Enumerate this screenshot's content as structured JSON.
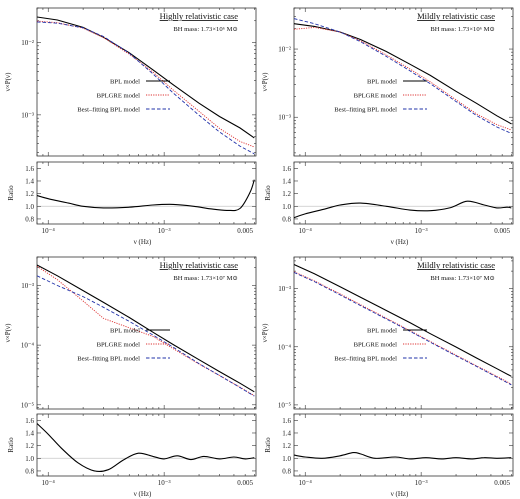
{
  "chart_data": [
    {
      "type": "line",
      "title": "Highly relativistic case",
      "subtitle": "BH mass: 1.73×10⁶ M⊙",
      "xlabel": "ν (Hz)",
      "ylabel": "ν×P(ν)",
      "xscale": "log",
      "yscale": "log",
      "xlim": [
        8e-05,
        0.0062
      ],
      "ylim": [
        0.00027,
        0.03
      ],
      "xticks": [
        {
          "v": 0.0001,
          "label": "10⁻⁴"
        },
        {
          "v": 0.001,
          "label": "10⁻³"
        },
        {
          "v": 0.005,
          "label": "0.005"
        }
      ],
      "yticks": [
        {
          "v": 0.001,
          "label": "10⁻³"
        },
        {
          "v": 0.01,
          "label": "10⁻²"
        }
      ],
      "x": [
        8e-05,
        0.00012,
        0.0002,
        0.0003,
        0.0005,
        0.0008,
        0.0012,
        0.002,
        0.003,
        0.0045,
        0.006
      ],
      "series": [
        {
          "name": "BPL model",
          "color": "#000000",
          "dash": "solid",
          "values": [
            0.0225,
            0.0205,
            0.0162,
            0.0118,
            0.0072,
            0.0042,
            0.0026,
            0.00145,
            0.00095,
            0.00066,
            0.00048
          ]
        },
        {
          "name": "BPLGRE model",
          "color": "#dd3333",
          "dash": "dotted",
          "values": [
            0.0198,
            0.0188,
            0.0158,
            0.0117,
            0.0069,
            0.0039,
            0.0022,
            0.00112,
            0.00065,
            0.00043,
            0.00036
          ]
        },
        {
          "name": "Best–fitting BPL model",
          "color": "#2233aa",
          "dash": "dashed",
          "values": [
            0.0193,
            0.0185,
            0.016,
            0.0121,
            0.0071,
            0.0037,
            0.002,
            0.00099,
            0.00058,
            0.00037,
            0.00029
          ]
        }
      ],
      "legend_position": "bottom-left",
      "ratio": {
        "ylabel": "Ratio",
        "ylim": [
          0.72,
          1.7
        ],
        "yticks": [
          0.8,
          1.0,
          1.2,
          1.4,
          1.6
        ],
        "reference": 1.0,
        "x": [
          8e-05,
          0.0001,
          0.00015,
          0.0002,
          0.0003,
          0.0005,
          0.0008,
          0.0012,
          0.0018,
          0.0025,
          0.0035,
          0.0045,
          0.0055,
          0.006
        ],
        "values": [
          1.17,
          1.12,
          1.05,
          1.0,
          0.975,
          0.985,
          1.02,
          1.03,
          1.0,
          0.96,
          0.935,
          0.965,
          1.22,
          1.42
        ]
      }
    },
    {
      "type": "line",
      "title": "Mildly relativistic case",
      "subtitle": "BH mass: 1.73×10⁶ M⊙",
      "xlabel": "ν (Hz)",
      "ylabel": "ν×P(ν)",
      "xscale": "log",
      "yscale": "log",
      "xlim": [
        8e-05,
        0.0062
      ],
      "ylim": [
        0.00027,
        0.04
      ],
      "xticks": [
        {
          "v": 0.0001,
          "label": "10⁻⁴"
        },
        {
          "v": 0.001,
          "label": "10⁻³"
        },
        {
          "v": 0.005,
          "label": "0.005"
        }
      ],
      "yticks": [
        {
          "v": 0.001,
          "label": "10⁻³"
        },
        {
          "v": 0.01,
          "label": "10⁻²"
        }
      ],
      "x": [
        8e-05,
        0.00012,
        0.0002,
        0.0003,
        0.0005,
        0.0008,
        0.0012,
        0.002,
        0.003,
        0.0045,
        0.006
      ],
      "series": [
        {
          "name": "BPL model",
          "color": "#000000",
          "dash": "solid",
          "values": [
            0.0235,
            0.0215,
            0.0178,
            0.0138,
            0.0092,
            0.006,
            0.0041,
            0.0024,
            0.0016,
            0.00105,
            0.0008
          ]
        },
        {
          "name": "BPLGRE model",
          "color": "#dd3333",
          "dash": "dotted",
          "values": [
            0.0195,
            0.0208,
            0.0178,
            0.0132,
            0.0082,
            0.0051,
            0.0033,
            0.0018,
            0.00112,
            0.00078,
            0.00065
          ]
        },
        {
          "name": "Best–fitting BPL model",
          "color": "#2233aa",
          "dash": "dashed",
          "values": [
            0.028,
            0.0235,
            0.0178,
            0.0128,
            0.0078,
            0.0048,
            0.0031,
            0.0017,
            0.00106,
            0.00072,
            0.00058
          ]
        }
      ],
      "legend_position": "bottom-right",
      "ratio": {
        "ylabel": "Ratio",
        "ylim": [
          0.72,
          1.7
        ],
        "yticks": [
          0.8,
          1.0,
          1.2,
          1.4,
          1.6
        ],
        "reference": 1.0,
        "x": [
          8e-05,
          0.0001,
          0.00015,
          0.0002,
          0.0003,
          0.0005,
          0.0008,
          0.0012,
          0.0018,
          0.0025,
          0.0035,
          0.0045,
          0.0055,
          0.006
        ],
        "values": [
          0.82,
          0.88,
          0.96,
          1.02,
          1.05,
          1.0,
          0.94,
          0.93,
          0.98,
          1.08,
          1.02,
          0.975,
          0.985,
          0.975
        ]
      }
    },
    {
      "type": "line",
      "title": "Highly relativistic case",
      "subtitle": "BH mass: 1.73×10⁷ M⊙",
      "xlabel": "ν (Hz)",
      "ylabel": "ν×P(ν)",
      "xscale": "log",
      "yscale": "log",
      "xlim": [
        8e-05,
        0.0062
      ],
      "ylim": [
        8.5e-06,
        0.003
      ],
      "xticks": [
        {
          "v": 0.0001,
          "label": "10⁻⁴"
        },
        {
          "v": 0.001,
          "label": "10⁻³"
        },
        {
          "v": 0.005,
          "label": "0.005"
        }
      ],
      "yticks": [
        {
          "v": 1e-05,
          "label": "10⁻⁵"
        },
        {
          "v": 0.0001,
          "label": "10⁻⁴"
        },
        {
          "v": 0.001,
          "label": "10⁻³"
        }
      ],
      "x": [
        8e-05,
        0.00012,
        0.0002,
        0.0003,
        0.0005,
        0.0008,
        0.0012,
        0.002,
        0.003,
        0.0045,
        0.006
      ],
      "series": [
        {
          "name": "BPL model",
          "color": "#000000",
          "dash": "solid",
          "values": [
            0.0022,
            0.00145,
            0.00082,
            0.00052,
            0.00029,
            0.000165,
            0.000102,
            5.7e-05,
            3.6e-05,
            2.3e-05,
            1.65e-05
          ]
        },
        {
          "name": "BPLGRE model",
          "color": "#dd3333",
          "dash": "dotted",
          "values": [
            0.0021,
            0.00125,
            0.00055,
            0.00028,
            0.000195,
            0.00014,
            8.7e-05,
            4.8e-05,
            3.1e-05,
            1.98e-05,
            1.42e-05
          ]
        },
        {
          "name": "Best–fitting BPL model",
          "color": "#2233aa",
          "dash": "dashed",
          "values": [
            0.00145,
            0.001,
            0.00065,
            0.00043,
            0.00025,
            0.000148,
            9.2e-05,
            4.9e-05,
            3.1e-05,
            1.95e-05,
            1.4e-05
          ]
        }
      ],
      "legend_position": "bottom-right",
      "ratio": {
        "ylabel": "Ratio",
        "ylim": [
          0.72,
          1.7
        ],
        "yticks": [
          0.8,
          1.0,
          1.2,
          1.4,
          1.6
        ],
        "reference": 1.0,
        "x": [
          8e-05,
          0.0001,
          0.00013,
          0.00018,
          0.00025,
          0.00033,
          0.00045,
          0.0006,
          0.0008,
          0.001,
          0.0013,
          0.0017,
          0.0022,
          0.003,
          0.004,
          0.005,
          0.006
        ],
        "values": [
          1.55,
          1.38,
          1.16,
          0.93,
          0.8,
          0.82,
          0.98,
          1.08,
          1.03,
          0.99,
          1.04,
          0.98,
          1.03,
          0.99,
          1.02,
          0.99,
          1.01
        ]
      }
    },
    {
      "type": "line",
      "title": "Mildly relativistic case",
      "subtitle": "BH mass: 1.73×10⁷ M⊙",
      "xlabel": "ν (Hz)",
      "ylabel": "ν×P(ν)",
      "xscale": "log",
      "yscale": "log",
      "xlim": [
        8e-05,
        0.0062
      ],
      "ylim": [
        8.5e-06,
        0.0035
      ],
      "xticks": [
        {
          "v": 0.0001,
          "label": "10⁻⁴"
        },
        {
          "v": 0.001,
          "label": "10⁻³"
        },
        {
          "v": 0.005,
          "label": "0.005"
        }
      ],
      "yticks": [
        {
          "v": 1e-05,
          "label": "10⁻⁵"
        },
        {
          "v": 0.0001,
          "label": "10⁻⁴"
        },
        {
          "v": 0.001,
          "label": "10⁻³"
        }
      ],
      "x": [
        8e-05,
        0.00012,
        0.0002,
        0.0003,
        0.0005,
        0.0008,
        0.0012,
        0.002,
        0.003,
        0.0045,
        0.006
      ],
      "series": [
        {
          "name": "BPL model",
          "color": "#000000",
          "dash": "solid",
          "values": [
            0.0026,
            0.0018,
            0.00108,
            0.00071,
            0.00042,
            0.00026,
            0.000168,
            9.9e-05,
            6.4e-05,
            4.2e-05,
            3.1e-05
          ]
        },
        {
          "name": "BPLGRE model",
          "color": "#dd3333",
          "dash": "dotted",
          "values": [
            0.00195,
            0.00136,
            0.00081,
            0.00053,
            0.00031,
            0.00019,
            0.000123,
            7.2e-05,
            4.7e-05,
            3.1e-05,
            2.28e-05
          ]
        },
        {
          "name": "Best–fitting BPL model",
          "color": "#2233aa",
          "dash": "dashed",
          "values": [
            0.0019,
            0.00132,
            0.00078,
            0.00051,
            0.0003,
            0.000185,
            0.00012,
            7e-05,
            4.6e-05,
            3e-05,
            2.22e-05
          ]
        }
      ],
      "legend_position": "bottom-right",
      "ratio": {
        "ylabel": "Ratio",
        "ylim": [
          0.72,
          1.7
        ],
        "yticks": [
          0.8,
          1.0,
          1.2,
          1.4,
          1.6
        ],
        "reference": 1.0,
        "x": [
          8e-05,
          0.0001,
          0.00014,
          0.0002,
          0.00026,
          0.0003,
          0.0004,
          0.0006,
          0.0008,
          0.0011,
          0.0015,
          0.002,
          0.0027,
          0.0035,
          0.0045,
          0.006
        ],
        "values": [
          1.05,
          1.02,
          1.0,
          1.04,
          1.09,
          1.07,
          1.0,
          1.02,
          0.99,
          1.01,
          0.99,
          1.01,
          0.99,
          1.01,
          1.0,
          1.01
        ]
      }
    }
  ]
}
